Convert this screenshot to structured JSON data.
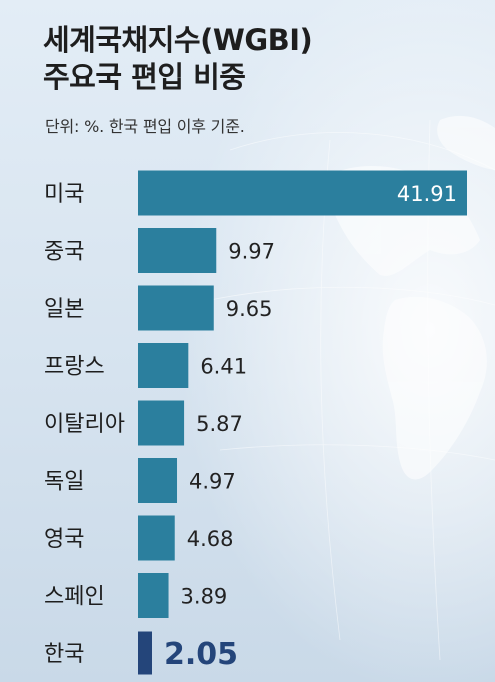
{
  "title_lines": [
    "세계국채지수(WGBI)",
    "주요국 편입 비중"
  ],
  "unit_note": "단위: %. 한국 편입 이후 기준.",
  "colors": {
    "bar": "#2b7f9e",
    "highlight_bar": "#24457a",
    "highlight_value": "#24457a",
    "category_text": "#1e1e1e",
    "value_text": "#222222",
    "inside_value_text": "#ffffff"
  },
  "chart_data": {
    "type": "bar",
    "orientation": "horizontal",
    "title": "세계국채지수(WGBI) 주요국 편입 비중",
    "xlabel": "",
    "ylabel": "",
    "unit_note": "단위: %. 한국 편입 이후 기준.",
    "categories": [
      "미국",
      "중국",
      "일본",
      "프랑스",
      "이탈리아",
      "독일",
      "영국",
      "스페인",
      "한국"
    ],
    "values": [
      41.91,
      9.97,
      9.65,
      6.41,
      5.87,
      4.97,
      4.68,
      3.89,
      2.05
    ],
    "value_labels": [
      "41.91",
      "9.97",
      "9.65",
      "6.41",
      "5.87",
      "4.97",
      "4.68",
      "3.89",
      "2.05"
    ],
    "highlight": "한국",
    "xlim": [
      0,
      41.91
    ],
    "grid": false,
    "legend": "none"
  }
}
